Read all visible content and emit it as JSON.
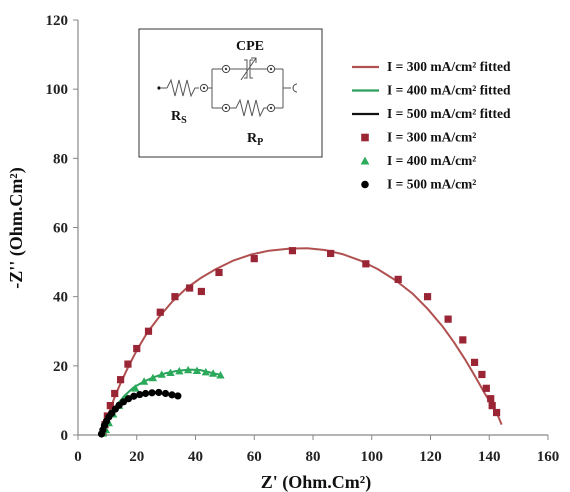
{
  "chart_data": {
    "type": "scatter",
    "xlabel": "Z' (Ohm.Cm²)",
    "ylabel": "-Z'' (Ohm.Cm²)",
    "xlim": [
      0,
      160
    ],
    "ylim": [
      0,
      120
    ],
    "x_ticks": [
      0,
      20,
      40,
      60,
      80,
      100,
      120,
      140,
      160
    ],
    "y_ticks": [
      0,
      20,
      40,
      60,
      80,
      100,
      120
    ],
    "grid": false,
    "legend_position": "top-right",
    "series": [
      {
        "name": "I = 300 mA/cm² fitted",
        "kind": "line",
        "color": "#b05050",
        "points": [
          [
            8.5,
            0
          ],
          [
            9,
            2
          ],
          [
            9.8,
            4.5
          ],
          [
            11,
            7.5
          ],
          [
            12.5,
            11
          ],
          [
            14.5,
            15
          ],
          [
            17,
            19.5
          ],
          [
            20,
            24.5
          ],
          [
            23.5,
            29.5
          ],
          [
            27.5,
            34
          ],
          [
            32,
            38.5
          ],
          [
            37,
            42.5
          ],
          [
            42,
            45.5
          ],
          [
            47,
            48
          ],
          [
            53,
            50.5
          ],
          [
            59,
            52.2
          ],
          [
            65,
            53.3
          ],
          [
            72,
            53.9
          ],
          [
            78,
            54
          ],
          [
            84,
            53.5
          ],
          [
            90,
            52.3
          ],
          [
            96,
            50.5
          ],
          [
            102,
            48
          ],
          [
            108,
            44.8
          ],
          [
            114,
            40.8
          ],
          [
            119,
            36.5
          ],
          [
            124,
            31.5
          ],
          [
            128,
            26.8
          ],
          [
            132,
            21.5
          ],
          [
            135.5,
            16.5
          ],
          [
            138.5,
            12
          ],
          [
            141,
            8.5
          ],
          [
            143,
            5.5
          ],
          [
            144.2,
            3
          ]
        ]
      },
      {
        "name": "I = 400 mA/cm² fitted",
        "kind": "line",
        "color": "#2aa05a",
        "points": [
          [
            8.5,
            0.5
          ],
          [
            9.5,
            3
          ],
          [
            11,
            5.5
          ],
          [
            13,
            8.5
          ],
          [
            16,
            11.5
          ],
          [
            19,
            13.8
          ],
          [
            22.5,
            15.5
          ],
          [
            26,
            16.8
          ],
          [
            30,
            17.9
          ],
          [
            34,
            18.6
          ],
          [
            38,
            18.9
          ],
          [
            41.5,
            18.8
          ],
          [
            44.5,
            18.2
          ],
          [
            47,
            17.7
          ],
          [
            49,
            17.3
          ]
        ]
      },
      {
        "name": "I = 500 mA/cm² fitted",
        "kind": "line",
        "color": "#111111",
        "points": [
          [
            8,
            0
          ],
          [
            8.5,
            2
          ],
          [
            9.5,
            4
          ],
          [
            11,
            6
          ],
          [
            13,
            8
          ],
          [
            15.5,
            9.8
          ],
          [
            18.5,
            11
          ],
          [
            22,
            11.8
          ],
          [
            25.5,
            12.2
          ],
          [
            28.5,
            12
          ],
          [
            31,
            11.7
          ],
          [
            33.5,
            11.4
          ],
          [
            34.5,
            11.2
          ]
        ]
      },
      {
        "name": "I = 300 mA/cm²",
        "kind": "marker",
        "marker": "square",
        "color": "#9a2535",
        "points": [
          [
            8.5,
            0.8
          ],
          [
            9.2,
            3
          ],
          [
            10,
            5.5
          ],
          [
            11,
            8.5
          ],
          [
            12.5,
            12
          ],
          [
            14.5,
            16
          ],
          [
            17,
            20.5
          ],
          [
            20,
            25
          ],
          [
            24,
            30
          ],
          [
            28,
            35.5
          ],
          [
            33,
            40
          ],
          [
            38,
            42.5
          ],
          [
            42,
            41.5
          ],
          [
            48,
            47
          ],
          [
            60,
            51
          ],
          [
            73,
            53.3
          ],
          [
            86,
            52.5
          ],
          [
            98,
            49.5
          ],
          [
            109,
            45
          ],
          [
            119,
            40
          ],
          [
            126,
            33.5
          ],
          [
            131,
            27.5
          ],
          [
            135,
            21
          ],
          [
            137.5,
            17.5
          ],
          [
            139,
            13.5
          ],
          [
            140.5,
            10.5
          ],
          [
            141,
            8.5
          ],
          [
            142.5,
            6.5
          ]
        ]
      },
      {
        "name": "I = 400 mA/cm²",
        "kind": "marker",
        "marker": "triangle",
        "color": "#2aaa5a",
        "points": [
          [
            8.5,
            0.5
          ],
          [
            9.5,
            1.5
          ],
          [
            10.5,
            3.5
          ],
          [
            12,
            6
          ],
          [
            14,
            8.5
          ],
          [
            16.5,
            11
          ],
          [
            19.5,
            13.5
          ],
          [
            22.5,
            15.5
          ],
          [
            25.5,
            16.5
          ],
          [
            28.5,
            17.5
          ],
          [
            31.5,
            18
          ],
          [
            34.5,
            18.5
          ],
          [
            37.5,
            18.8
          ],
          [
            40.5,
            18.6
          ],
          [
            43.5,
            18.2
          ],
          [
            46,
            17.8
          ],
          [
            48.5,
            17.3
          ]
        ]
      },
      {
        "name": "I = 500 mA/cm²",
        "kind": "marker",
        "marker": "circle",
        "color": "#000000",
        "points": [
          [
            8,
            0.3
          ],
          [
            8.5,
            1.5
          ],
          [
            9,
            2.8
          ],
          [
            9.7,
            4
          ],
          [
            10.5,
            5.2
          ],
          [
            11.5,
            6.3
          ],
          [
            12.7,
            7.5
          ],
          [
            14,
            8.6
          ],
          [
            15.5,
            9.6
          ],
          [
            17.2,
            10.5
          ],
          [
            19,
            11.2
          ],
          [
            21,
            11.7
          ],
          [
            23,
            12
          ],
          [
            25.2,
            12.2
          ],
          [
            27.5,
            12.3
          ],
          [
            29.8,
            12
          ],
          [
            32,
            11.6
          ],
          [
            34,
            11.3
          ]
        ]
      }
    ]
  },
  "inset": {
    "cpe_label": "CPE",
    "rs_main": "R",
    "rs_sub": "S",
    "rp_main": "R",
    "rp_sub": "P"
  }
}
